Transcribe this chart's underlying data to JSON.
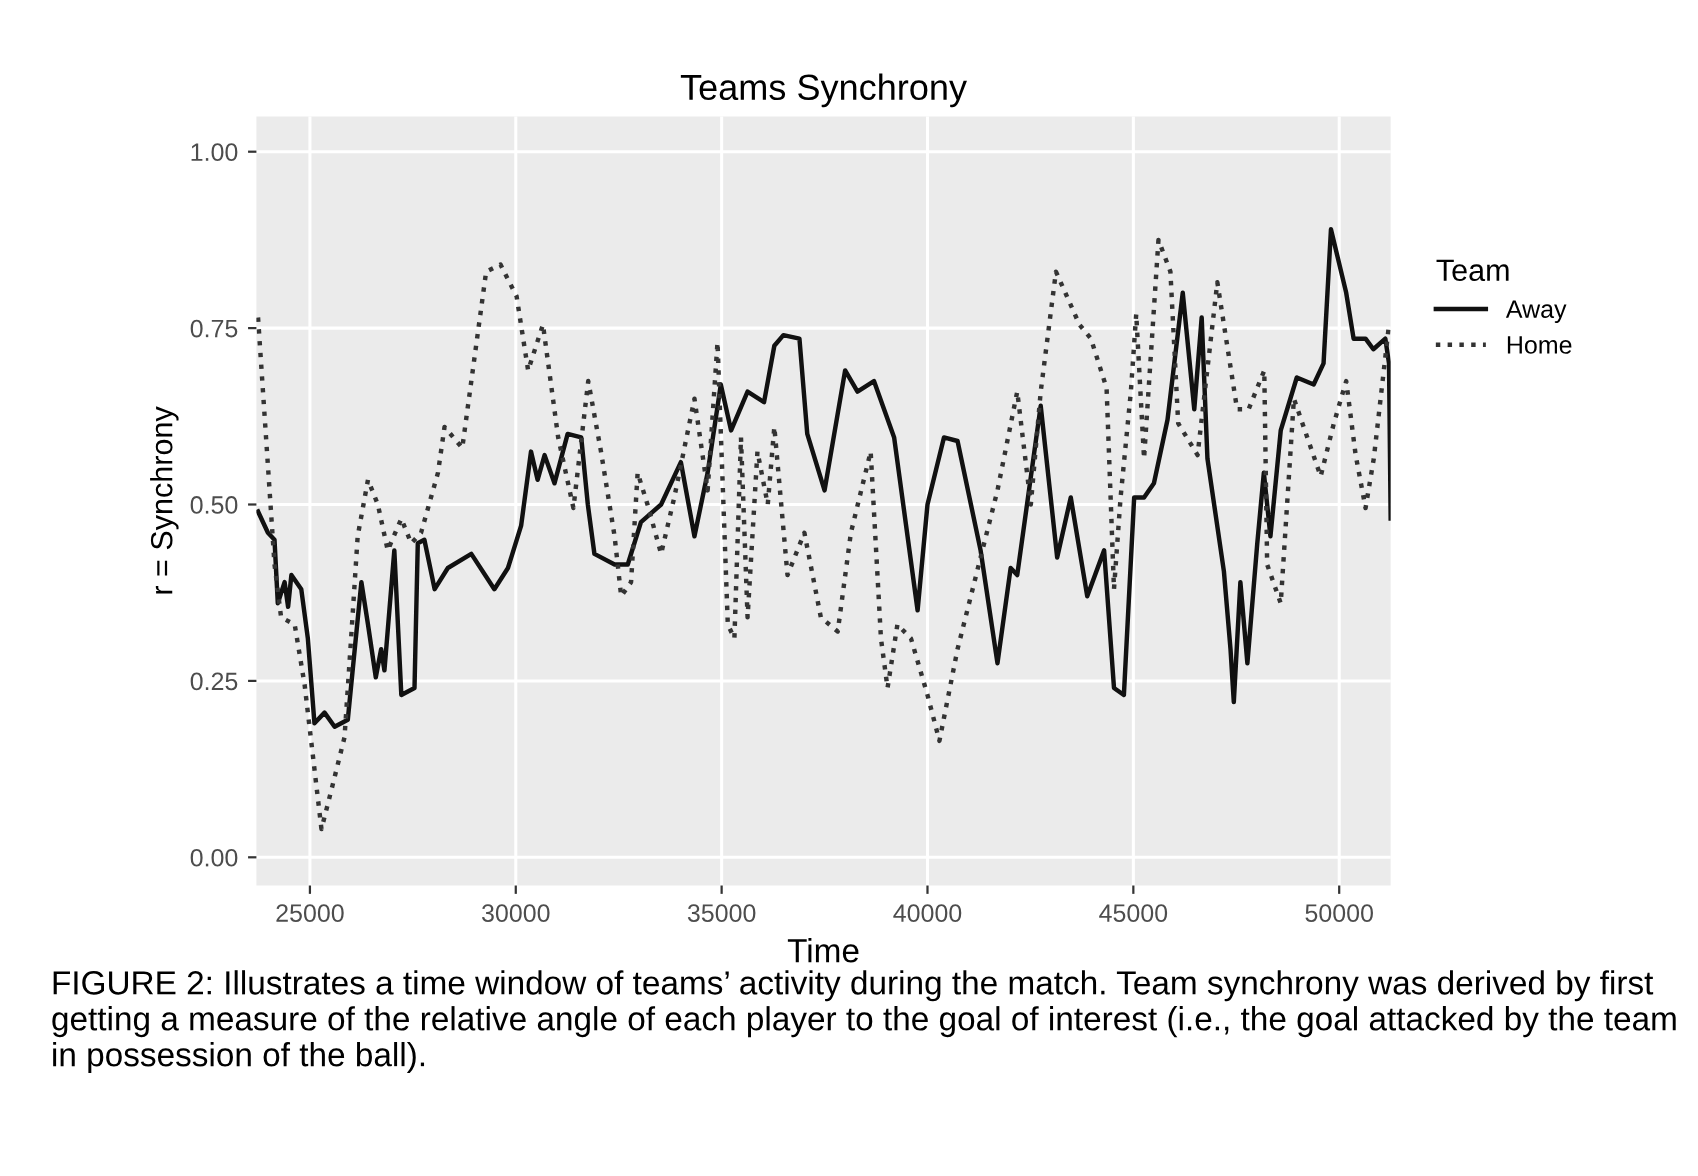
{
  "chart_data": {
    "type": "line",
    "title": "Teams Synchrony",
    "xlabel": "Time",
    "ylabel": "r = Synchrony",
    "legend_title": "Team",
    "legend": "right",
    "grid": true,
    "xlim": [
      23700,
      51250
    ],
    "xticks": [
      25000,
      30000,
      35000,
      40000,
      45000,
      50000
    ],
    "ylim": [
      -0.04,
      1.05
    ],
    "yticks": [
      {
        "value": 0,
        "label": "0.00"
      },
      {
        "value": 0.25,
        "label": "0.25"
      },
      {
        "value": 0.5,
        "label": "0.50"
      },
      {
        "value": 0.75,
        "label": "0.75"
      },
      {
        "value": 1,
        "label": "1.00"
      }
    ],
    "annotations": [
      "FIGURE 2: Illustrates a time window of teams’ activity during the match. Team synchrony was derived by first getting a measure of the relative angle of each player to the goal of interest (i.e., the goal attacked by the team in possession of the ball)."
    ],
    "series": [
      {
        "name": "Away",
        "color": "#111111",
        "line_style": "solid",
        "x": [
          23740,
          23980,
          24140,
          24220,
          24385,
          24470,
          24550,
          24790,
          24950,
          25110,
          25355,
          25600,
          25920,
          26080,
          26250,
          26410,
          26600,
          26730,
          26810,
          27050,
          27220,
          27540,
          27620,
          27780,
          28030,
          28350,
          28920,
          29480,
          29810,
          30130,
          30370,
          30530,
          30700,
          30940,
          31260,
          31590,
          31750,
          31910,
          32400,
          32720,
          33040,
          33530,
          34010,
          34340,
          34660,
          34980,
          35230,
          35630,
          36030,
          36280,
          36500,
          36890,
          37080,
          37500,
          38000,
          38300,
          38700,
          39190,
          39760,
          40000,
          40400,
          40730,
          41290,
          41700,
          42020,
          42180,
          42750,
          43150,
          43480,
          43880,
          44290,
          44530,
          44770,
          45020,
          45260,
          45500,
          45830,
          46200,
          46480,
          46660,
          46800,
          47200,
          47360,
          47440,
          47600,
          47770,
          48010,
          48170,
          48330,
          48580,
          48970,
          49380,
          49620,
          49800,
          50170,
          50350,
          50640,
          50830,
          51120,
          51210,
          51250
        ],
        "values": [
          0.49,
          0.46,
          0.45,
          0.36,
          0.39,
          0.355,
          0.4,
          0.38,
          0.31,
          0.19,
          0.205,
          0.185,
          0.195,
          0.29,
          0.39,
          0.33,
          0.255,
          0.295,
          0.265,
          0.435,
          0.23,
          0.24,
          0.445,
          0.45,
          0.38,
          0.41,
          0.43,
          0.38,
          0.41,
          0.47,
          0.575,
          0.535,
          0.57,
          0.53,
          0.6,
          0.595,
          0.5,
          0.43,
          0.415,
          0.415,
          0.475,
          0.5,
          0.56,
          0.455,
          0.545,
          0.67,
          0.605,
          0.66,
          0.645,
          0.725,
          0.74,
          0.735,
          0.6,
          0.52,
          0.69,
          0.66,
          0.675,
          0.595,
          0.35,
          0.5,
          0.595,
          0.59,
          0.435,
          0.275,
          0.41,
          0.4,
          0.64,
          0.425,
          0.51,
          0.37,
          0.435,
          0.24,
          0.23,
          0.51,
          0.51,
          0.53,
          0.62,
          0.8,
          0.635,
          0.765,
          0.565,
          0.405,
          0.295,
          0.22,
          0.39,
          0.275,
          0.445,
          0.545,
          0.455,
          0.605,
          0.68,
          0.67,
          0.7,
          0.89,
          0.8,
          0.735,
          0.735,
          0.72,
          0.735,
          0.7,
          0.48
        ]
      },
      {
        "name": "Home",
        "color": "#333333",
        "line_style": "dotted",
        "x": [
          23740,
          24140,
          24300,
          24630,
          24870,
          25110,
          25280,
          25520,
          25840,
          26000,
          26160,
          26410,
          26650,
          26890,
          27220,
          27460,
          27700,
          28110,
          28270,
          28700,
          29280,
          29630,
          30020,
          30300,
          30660,
          31030,
          31400,
          31760,
          32070,
          32400,
          32560,
          32800,
          32960,
          33200,
          33530,
          33850,
          34340,
          34660,
          34900,
          35150,
          35310,
          35470,
          35630,
          35870,
          36120,
          36280,
          36600,
          37010,
          37410,
          37820,
          38140,
          38620,
          38870,
          39030,
          39270,
          39600,
          40000,
          40290,
          40730,
          41290,
          41700,
          42180,
          42510,
          42750,
          43120,
          43690,
          43970,
          44350,
          44530,
          44690,
          44940,
          45070,
          45260,
          45610,
          45900,
          46090,
          46560,
          47040,
          47520,
          47800,
          48180,
          48250,
          48580,
          48900,
          49550,
          49870,
          50170,
          50400,
          50640,
          50840,
          51210
        ],
        "values": [
          0.765,
          0.415,
          0.34,
          0.33,
          0.245,
          0.125,
          0.04,
          0.095,
          0.17,
          0.31,
          0.455,
          0.535,
          0.5,
          0.435,
          0.48,
          0.445,
          0.46,
          0.545,
          0.61,
          0.58,
          0.83,
          0.84,
          0.795,
          0.69,
          0.755,
          0.595,
          0.495,
          0.675,
          0.575,
          0.455,
          0.37,
          0.39,
          0.545,
          0.5,
          0.43,
          0.51,
          0.65,
          0.52,
          0.73,
          0.33,
          0.31,
          0.595,
          0.34,
          0.575,
          0.5,
          0.61,
          0.4,
          0.46,
          0.34,
          0.32,
          0.46,
          0.575,
          0.31,
          0.24,
          0.33,
          0.31,
          0.23,
          0.165,
          0.295,
          0.425,
          0.52,
          0.66,
          0.5,
          0.66,
          0.83,
          0.755,
          0.735,
          0.665,
          0.38,
          0.51,
          0.66,
          0.77,
          0.565,
          0.875,
          0.83,
          0.615,
          0.57,
          0.815,
          0.635,
          0.635,
          0.69,
          0.415,
          0.36,
          0.65,
          0.54,
          0.615,
          0.675,
          0.57,
          0.495,
          0.565,
          0.755
        ]
      }
    ]
  }
}
